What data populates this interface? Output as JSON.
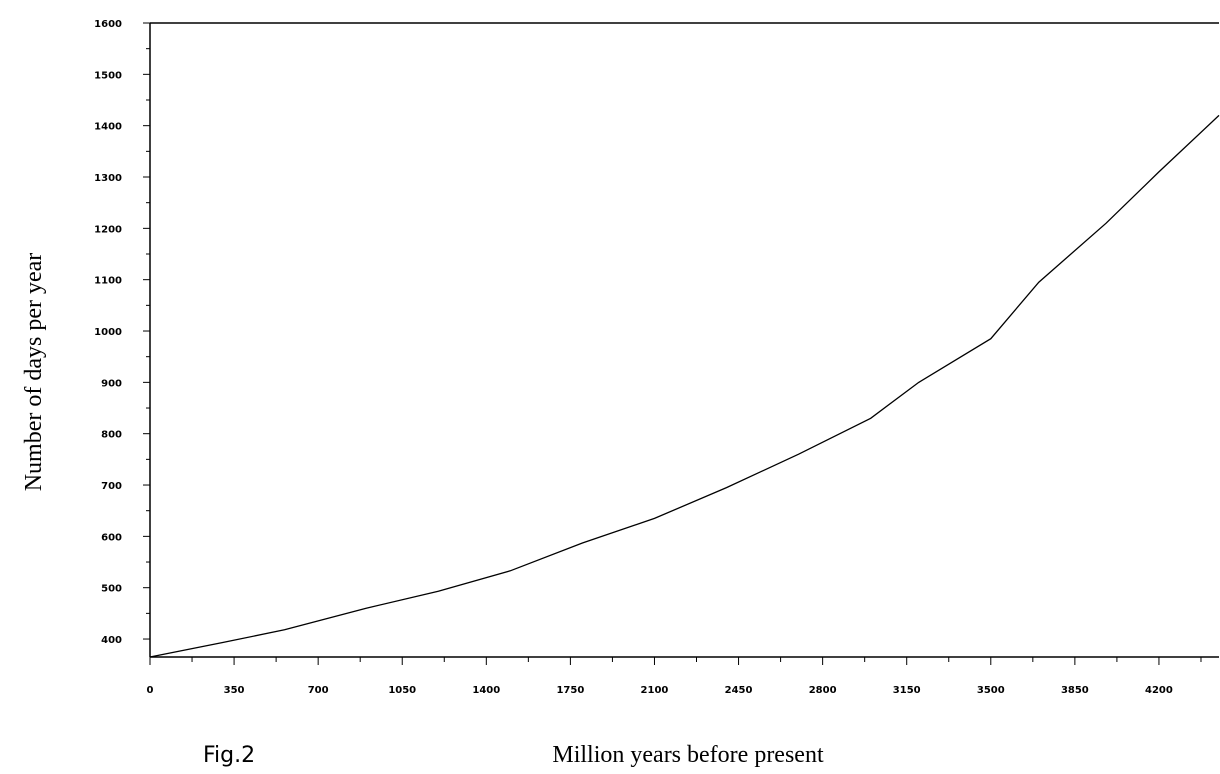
{
  "figure_label": "Fig.2",
  "chart_data": {
    "type": "line",
    "title": "",
    "xlabel": "Million years before present",
    "ylabel": "Number of days per year",
    "xlim": [
      0,
      4450
    ],
    "ylim": [
      365,
      1600
    ],
    "x_ticks": [
      0,
      350,
      700,
      1050,
      1400,
      1750,
      2100,
      2450,
      2800,
      3150,
      3500,
      3850,
      4200
    ],
    "y_ticks": [
      400,
      500,
      600,
      700,
      800,
      900,
      1000,
      1100,
      1200,
      1300,
      1400,
      1500,
      1600
    ],
    "grid": false,
    "series": [
      {
        "x": [
          0,
          300,
          560,
          900,
          1200,
          1500,
          1800,
          2100,
          2400,
          2700,
          3000,
          3200,
          3500,
          3700,
          3980,
          4200,
          4450
        ],
        "values": [
          365,
          393,
          418,
          460,
          493,
          533,
          587,
          635,
          695,
          760,
          830,
          900,
          985,
          1095,
          1210,
          1310,
          1420
        ]
      }
    ]
  }
}
